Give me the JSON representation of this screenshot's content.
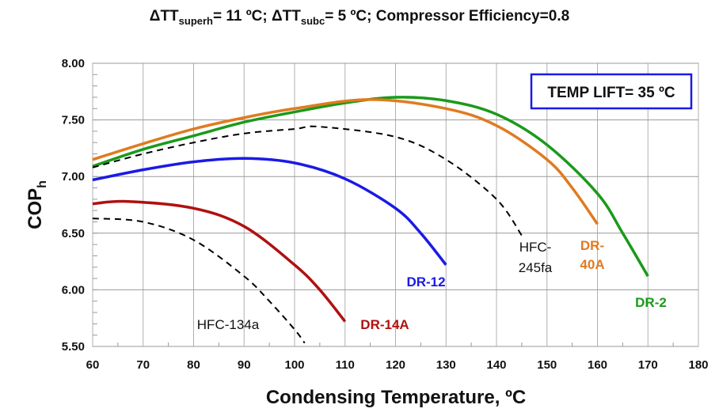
{
  "chart_data": {
    "type": "line",
    "title_parts": {
      "dT": "ΔT",
      "superh": "superh",
      "part1": "= 11 ºC; ",
      "subc": "subc",
      "part2": "= 5 ºC; Compressor Efficiency=0.8"
    },
    "xlabel": "Condensing Temperature, ºC",
    "ylabel": "COP",
    "ylabel_sub": "h",
    "xlim": [
      60,
      180
    ],
    "ylim": [
      5.5,
      8.0
    ],
    "xticks": [
      "60",
      "70",
      "80",
      "90",
      "100",
      "110",
      "120",
      "130",
      "140",
      "150",
      "160",
      "170",
      "180"
    ],
    "yticks": [
      "5.50",
      "6.00",
      "6.50",
      "7.00",
      "7.50",
      "8.00"
    ],
    "grid": true,
    "annotation": "TEMP LIFT= 35 ºC",
    "series": [
      {
        "name": "DR-2",
        "color": "#1a9a1a",
        "dashed": false,
        "x": [
          60,
          70,
          80,
          90,
          100,
          110,
          120,
          130,
          140,
          150,
          160,
          165,
          170
        ],
        "y": [
          7.09,
          7.24,
          7.36,
          7.48,
          7.57,
          7.65,
          7.7,
          7.67,
          7.55,
          7.28,
          6.85,
          6.5,
          6.12
        ]
      },
      {
        "name": "DR-40A",
        "color": "#e07b20",
        "dashed": false,
        "x": [
          60,
          70,
          80,
          90,
          100,
          115,
          130,
          140,
          150,
          155,
          160
        ],
        "y": [
          7.15,
          7.29,
          7.42,
          7.52,
          7.6,
          7.68,
          7.6,
          7.45,
          7.15,
          6.9,
          6.58
        ]
      },
      {
        "name": "HFC-245fa",
        "color": "#000000",
        "dashed": true,
        "x": [
          60,
          70,
          80,
          90,
          100,
          105,
          120,
          130,
          140,
          145
        ],
        "y": [
          7.08,
          7.2,
          7.3,
          7.38,
          7.42,
          7.44,
          7.35,
          7.15,
          6.8,
          6.48
        ]
      },
      {
        "name": "DR-12",
        "color": "#1a1ae6",
        "dashed": false,
        "x": [
          60,
          70,
          80,
          90,
          100,
          110,
          120,
          125,
          130
        ],
        "y": [
          6.97,
          7.06,
          7.13,
          7.16,
          7.12,
          6.98,
          6.72,
          6.5,
          6.22
        ]
      },
      {
        "name": "DR-14A",
        "color": "#b01010",
        "dashed": false,
        "x": [
          60,
          67,
          80,
          90,
          100,
          105,
          110
        ],
        "y": [
          6.76,
          6.78,
          6.72,
          6.56,
          6.22,
          6.0,
          5.72
        ]
      },
      {
        "name": "HFC-134a",
        "color": "#000000",
        "dashed": true,
        "x": [
          60,
          70,
          80,
          90,
          95,
          100,
          102
        ],
        "y": [
          6.63,
          6.6,
          6.44,
          6.12,
          5.9,
          5.65,
          5.53
        ]
      }
    ]
  }
}
